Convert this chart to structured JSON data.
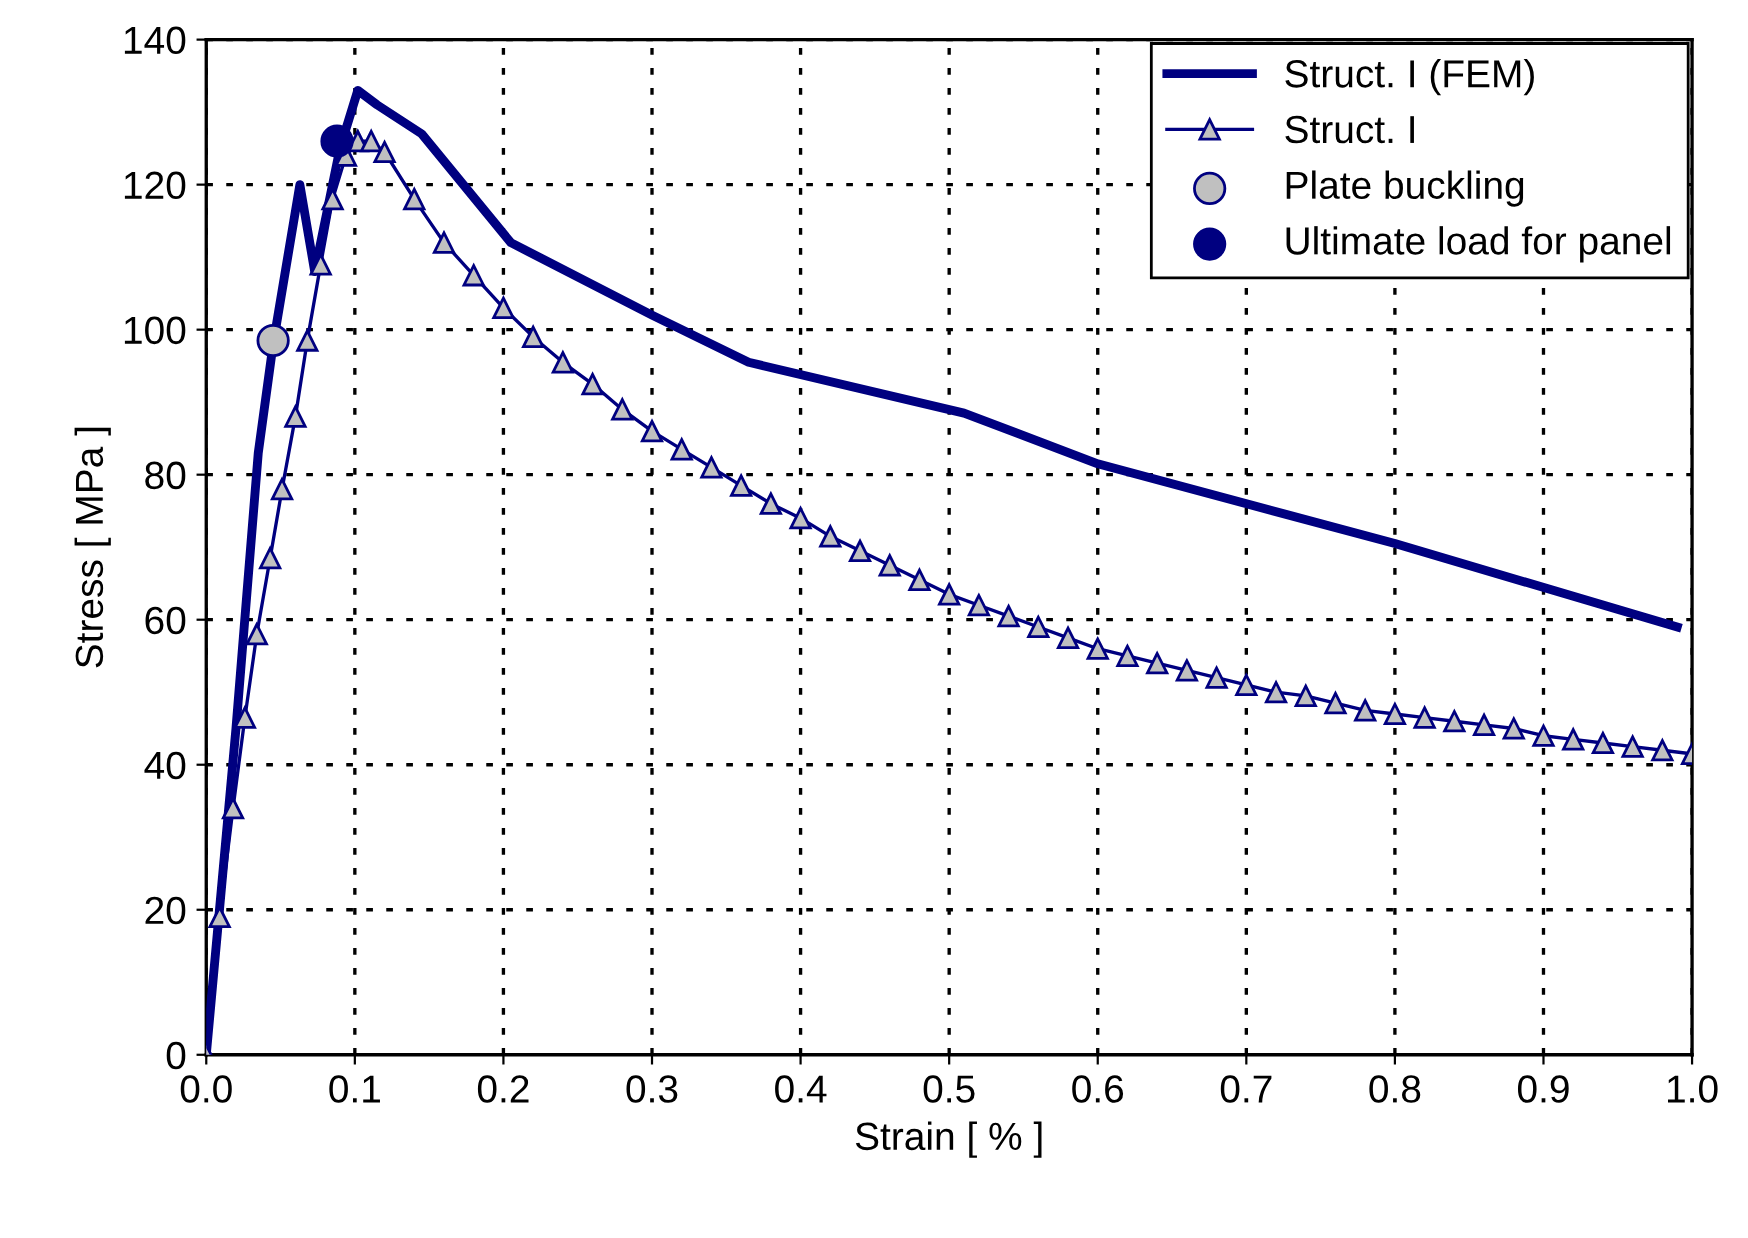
{
  "chart_data": {
    "type": "line",
    "xlabel": "Strain [ % ]",
    "ylabel": "Stress [ MPa ]",
    "xlim": [
      0.0,
      1.0
    ],
    "ylim": [
      0,
      140
    ],
    "xticks": [
      {
        "value": 0,
        "label": "0.0"
      },
      0.1,
      0.2,
      0.3,
      0.4,
      0.5,
      0.6,
      0.7,
      0.8,
      0.9,
      {
        "value": 1,
        "label": "1.0"
      }
    ],
    "yticks": [
      0,
      20,
      40,
      60,
      80,
      100,
      120,
      140
    ],
    "grid": true,
    "legend": "top right",
    "line_style": "solid",
    "series": [
      {
        "name": "Struct. I (FEM)",
        "color": "#000080",
        "marker": "none",
        "x": [
          0,
          0.02,
          0.035,
          0.045,
          0.063,
          0.073,
          0.09,
          0.102,
          0.115,
          0.145,
          0.205,
          0.3,
          0.365,
          0.51,
          0.6,
          0.8,
          0.99
        ],
        "values": [
          0,
          45,
          83,
          98,
          120,
          108,
          125,
          133,
          131,
          127,
          112,
          102,
          95.5,
          88.5,
          81.5,
          70.5,
          59
        ]
      },
      {
        "name": "Struct. I",
        "color": "#000080",
        "marker": "triangle",
        "x": [
          0,
          0.009,
          0.018,
          0.026,
          0.034,
          0.043,
          0.051,
          0.06,
          0.068,
          0.077,
          0.085,
          0.094,
          0.102,
          0.111,
          0.12,
          0.14,
          0.16,
          0.18,
          0.2,
          0.22,
          0.24,
          0.26,
          0.28,
          0.3,
          0.32,
          0.34,
          0.36,
          0.38,
          0.4,
          0.42,
          0.44,
          0.46,
          0.48,
          0.5,
          0.52,
          0.54,
          0.56,
          0.58,
          0.6,
          0.62,
          0.64,
          0.66,
          0.68,
          0.7,
          0.72,
          0.74,
          0.76,
          0.78,
          0.8,
          0.82,
          0.84,
          0.86,
          0.88,
          0.9,
          0.92,
          0.94,
          0.96,
          0.98,
          1.0
        ],
        "values": [
          0,
          19,
          34,
          46.5,
          58,
          68.5,
          78,
          88,
          98.5,
          109,
          118,
          124,
          126,
          126,
          124.5,
          118,
          112,
          107.5,
          103,
          99,
          95.5,
          92.5,
          89,
          86,
          83.5,
          81,
          78.5,
          76,
          74,
          71.5,
          69.5,
          67.5,
          65.5,
          63.5,
          62,
          60.5,
          59,
          57.5,
          56,
          55,
          54,
          53,
          52,
          51,
          50,
          49.5,
          48.5,
          47.5,
          47,
          46.5,
          46,
          45.5,
          45,
          44,
          43.5,
          43,
          42.5,
          42,
          41.5
        ]
      },
      {
        "name": "Plate buckling",
        "type": "scatter",
        "color": "#c0c0c0",
        "marker": "circle",
        "x": [
          0.045
        ],
        "values": [
          98.5
        ]
      },
      {
        "name": "Ultimate load for panel",
        "type": "scatter",
        "color": "#000080",
        "marker": "circle",
        "x": [
          0.088
        ],
        "values": [
          126
        ]
      }
    ]
  }
}
